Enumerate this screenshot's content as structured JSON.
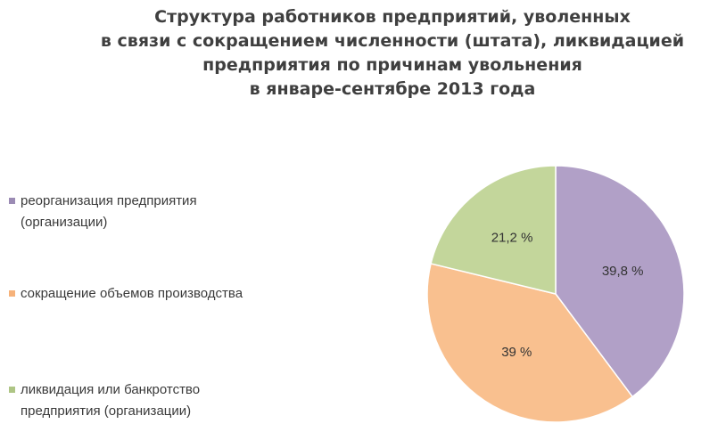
{
  "chart_data": {
    "type": "pie",
    "title_lines": [
      "Структура работников предприятий, уволенных",
      "в связи с сокращением численности (штата), ликвидацией",
      "предприятия  по причинам увольнения",
      "в январе-сентябре 2013 года"
    ],
    "slices": [
      {
        "name": "реорганизация предприятия (организации)",
        "legend_lines": [
          "реорганизация предприятия",
          "(организации)"
        ],
        "value": 39.8,
        "label": "39,8 %",
        "color": "#b1a0c7"
      },
      {
        "name": "сокращение объемов производства",
        "legend_lines": [
          "сокращение объемов производства"
        ],
        "value": 39,
        "label": "39 %",
        "color": "#f9c08f"
      },
      {
        "name": "ликвидация или банкротство предприятия (организации)",
        "legend_lines": [
          "ликвидация или банкротство",
          "предприятия (организации)"
        ],
        "value": 21.2,
        "label": "21,2 %",
        "color": "#c3d69b"
      }
    ],
    "start_angle_deg": 0,
    "direction": "clockwise",
    "legend_position": "left"
  }
}
